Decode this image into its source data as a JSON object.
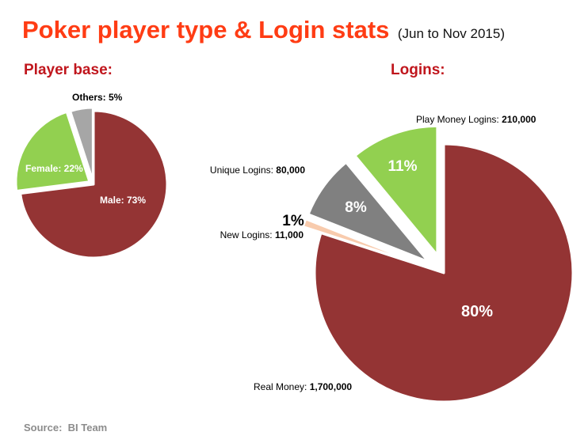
{
  "header": {
    "title": "Poker player type & Login stats",
    "subtitle": "(Jun to Nov 2015)"
  },
  "sections": {
    "player_base": "Player base:",
    "logins": "Logins:"
  },
  "source": "Source:  BI Team",
  "colors": {
    "title": "#ff3c14",
    "section": "#c0161d",
    "red": "#943434",
    "green": "#92d050",
    "gray": "#a6a6a6",
    "dark_gray": "#808080",
    "peach": "#f8cbad"
  },
  "chart_data": [
    {
      "type": "pie",
      "title": "Player base:",
      "categories": [
        "Male",
        "Female",
        "Others"
      ],
      "values": [
        73,
        22,
        5
      ],
      "unit": "%",
      "slices": [
        {
          "name": "Male",
          "value": 73,
          "label": "Male: 73%",
          "color": "#943434"
        },
        {
          "name": "Female",
          "value": 22,
          "label": "Female: 22%",
          "color": "#92d050"
        },
        {
          "name": "Others",
          "value": 5,
          "label": "Others: 5%",
          "color": "#a6a6a6"
        }
      ]
    },
    {
      "type": "pie",
      "title": "Logins:",
      "categories": [
        "Real Money",
        "New Logins",
        "Unique Logins",
        "Play Money Logins"
      ],
      "values": [
        80,
        1,
        8,
        11
      ],
      "unit": "%",
      "slices": [
        {
          "name": "Real Money",
          "value": 80,
          "count": "1,700,000",
          "pct_label": "80%",
          "color": "#943434"
        },
        {
          "name": "New Logins",
          "value": 1,
          "count": "11,000",
          "pct_label": "1%",
          "color": "#f8cbad"
        },
        {
          "name": "Unique Logins",
          "value": 8,
          "count": "80,000",
          "pct_label": "8%",
          "color": "#808080"
        },
        {
          "name": "Play Money Logins",
          "value": 11,
          "count": "210,000",
          "pct_label": "11%",
          "color": "#92d050"
        }
      ]
    }
  ]
}
